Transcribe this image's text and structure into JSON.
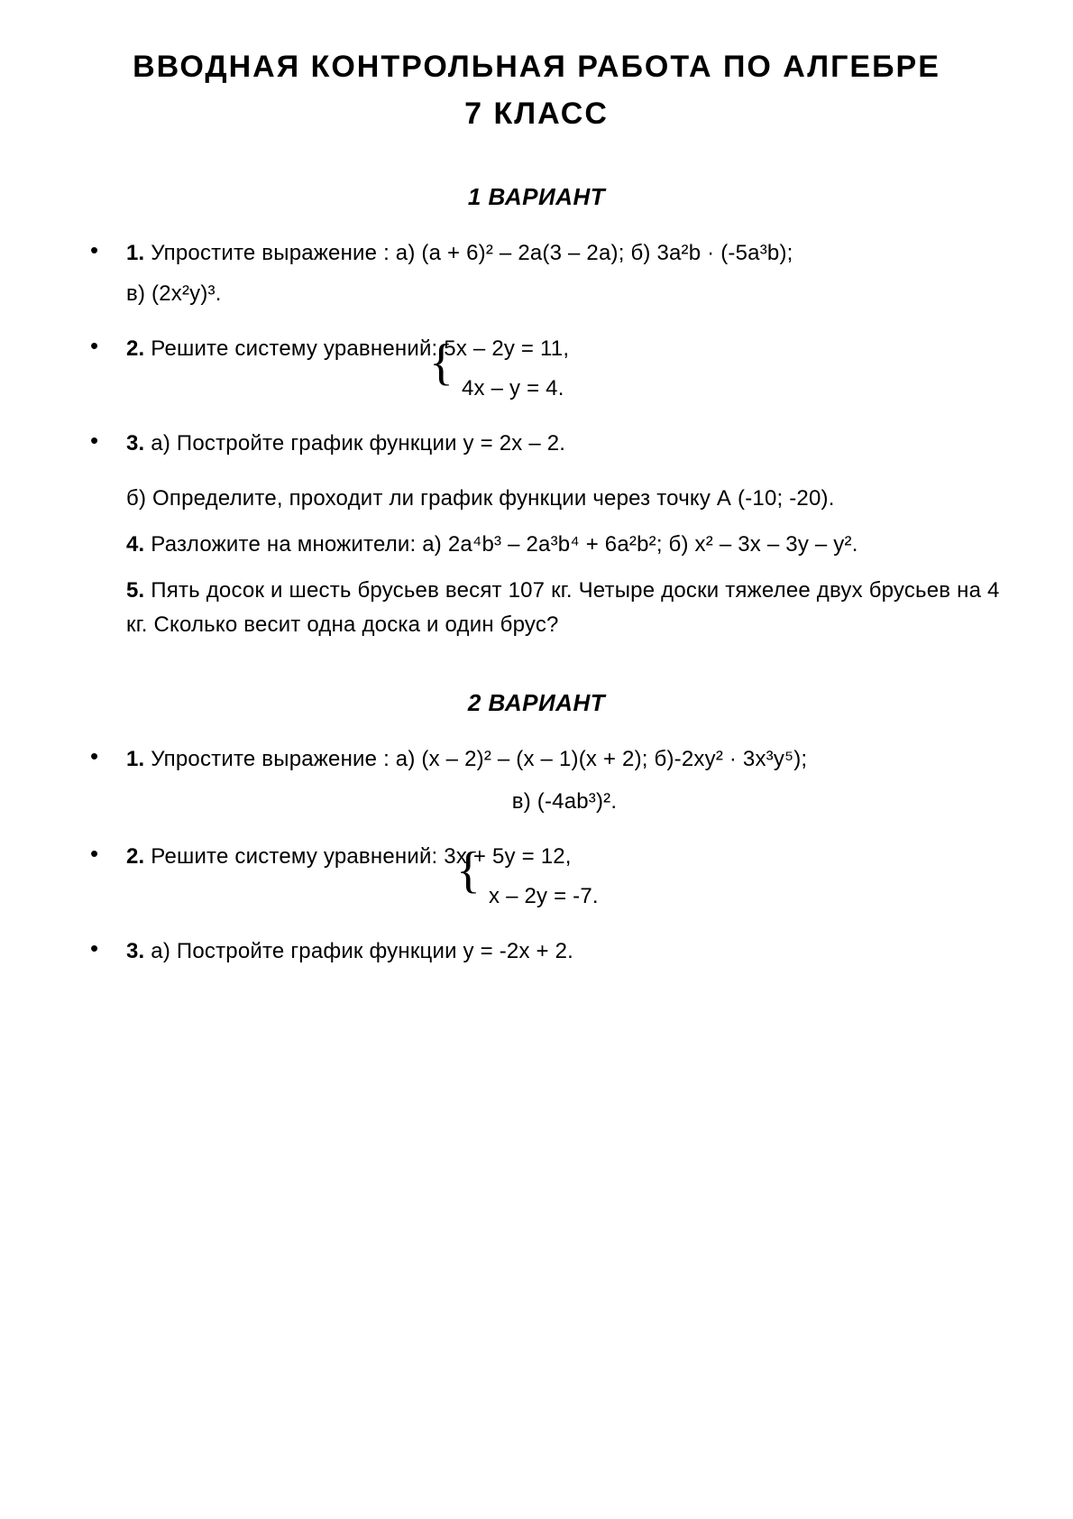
{
  "title_line1": "ВВОДНАЯ КОНТРОЛЬНАЯ РАБОТА ПО АЛГЕБРЕ",
  "title_line2": "7 КЛАСС",
  "variant1": {
    "heading": "1 ВАРИАНТ",
    "q1": "Упростите выражение : а) (а + 6)² – 2а(3 – 2а);  б) 3а²b · (-5а³b);",
    "q1_cont": "в) (2х²у)³.",
    "q2": "Решите систему уравнений:    5х – 2у = 11,",
    "q2_eq2": "4х –  у = 4.",
    "q3": "а) Постройте график функции у = 2х – 2.",
    "q3b": "б) Определите, проходит ли график функции через точку А (-10; -20).",
    "q4": "Разложите на множители:   а) 2а⁴b³ – 2а³b⁴ + 6а²b²;     б) х² – 3х – 3у – у².",
    "q5": "Пять досок и шесть брусьев весят 107 кг. Четыре доски тяжелее двух брусьев  на 4 кг. Сколько весит одна доска и один брус?"
  },
  "variant2": {
    "heading": "2 ВАРИАНТ",
    "q1": "Упростите выражение : а) (х – 2)² – (х – 1)(х + 2);  б)-2ху² · 3х³у⁵);",
    "q1_cont": "в) (-4аb³)².",
    "q2": "Решите систему уравнений:    3х + 5у = 12,",
    "q2_eq2": "х – 2у = -7.",
    "q3": "а) Постройте график функции у = -2х + 2."
  },
  "labels": {
    "n1": "1.",
    "n2": "2.",
    "n3": "3.",
    "n4": "4.",
    "n5": "5."
  }
}
